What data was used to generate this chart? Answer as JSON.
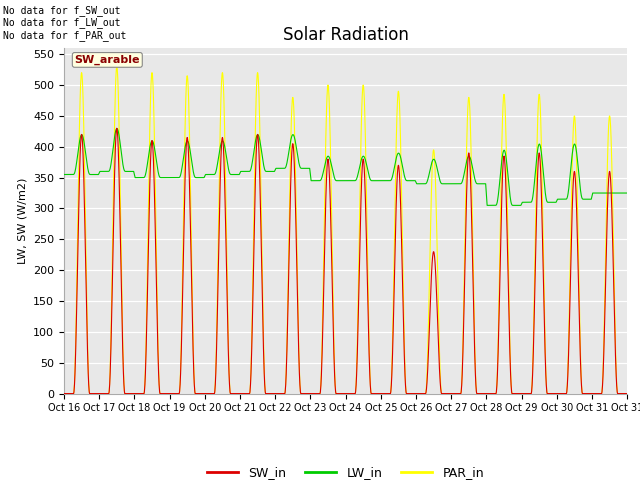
{
  "title": "Solar Radiation",
  "ylabel": "LW, SW (W/m2)",
  "xtick_labels": [
    "Oct 16",
    "Oct 17",
    "Oct 18",
    "Oct 19",
    "Oct 20",
    "Oct 21",
    "Oct 22",
    "Oct 23",
    "Oct 24",
    "Oct 25",
    "Oct 26",
    "Oct 27",
    "Oct 28",
    "Oct 29",
    "Oct 30",
    "Oct 31"
  ],
  "ylim": [
    0,
    560
  ],
  "yticks": [
    0,
    50,
    100,
    150,
    200,
    250,
    300,
    350,
    400,
    450,
    500,
    550
  ],
  "sw_color": "#dd0000",
  "lw_color": "#00cc00",
  "par_color": "#ffff00",
  "bg_color": "#e8e8e8",
  "title_fontsize": 12,
  "annotation_text": "No data for f_SW_out\nNo data for f_LW_out\nNo data for f_PAR_out",
  "legend_label_sw": "SW_in",
  "legend_label_lw": "LW_in",
  "legend_label_par": "PAR_in",
  "site_label": "SW_arable",
  "n_days": 16,
  "sw_peak_values": [
    420,
    430,
    410,
    415,
    415,
    420,
    405,
    380,
    380,
    370,
    230,
    390,
    385,
    390,
    360,
    360
  ],
  "par_peak_values": [
    520,
    530,
    520,
    515,
    520,
    520,
    480,
    500,
    500,
    490,
    395,
    480,
    485,
    485,
    450,
    450
  ],
  "lw_day_base": [
    355,
    360,
    350,
    350,
    355,
    360,
    365,
    345,
    345,
    345,
    340,
    340,
    305,
    310,
    315,
    325
  ],
  "lw_day_amp": [
    65,
    70,
    60,
    60,
    55,
    60,
    55,
    40,
    40,
    45,
    40,
    45,
    90,
    95,
    90,
    0
  ]
}
